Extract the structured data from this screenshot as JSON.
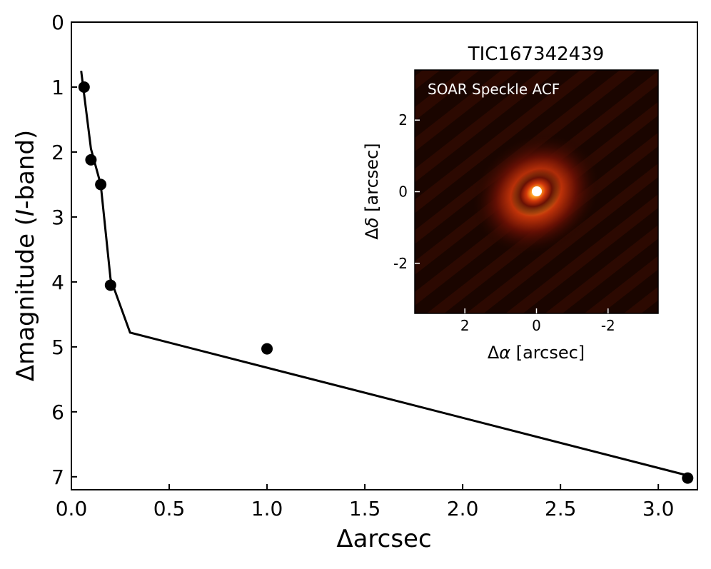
{
  "chart_data": [
    {
      "type": "line",
      "xlabel": "Δarcsec",
      "ylabel_prefix": "Δmagnitude (",
      "ylabel_italic": "I",
      "ylabel_suffix": "-band)",
      "xlim": [
        0.0,
        3.2
      ],
      "ylim": [
        7.2,
        0
      ],
      "y_inverted": true,
      "xticks": [
        0.0,
        0.5,
        1.0,
        1.5,
        2.0,
        2.5,
        3.0
      ],
      "xtick_labels": [
        "0.0",
        "0.5",
        "1.0",
        "1.5",
        "2.0",
        "2.5",
        "3.0"
      ],
      "yticks": [
        0,
        1,
        2,
        3,
        4,
        5,
        6,
        7
      ],
      "ytick_labels": [
        "0",
        "1",
        "2",
        "3",
        "4",
        "5",
        "6",
        "7"
      ],
      "grid": false,
      "series": [
        {
          "kind": "line",
          "color": "#000000",
          "x": [
            0.05,
            0.1,
            0.15,
            0.2,
            0.3,
            3.15
          ],
          "y": [
            0.75,
            1.95,
            2.5,
            3.95,
            4.78,
            6.98
          ]
        },
        {
          "kind": "scatter",
          "color": "#000000",
          "x": [
            0.065,
            0.1,
            0.15,
            0.2,
            1.0,
            3.15
          ],
          "y": [
            1.0,
            2.12,
            2.5,
            4.05,
            5.03,
            7.02
          ]
        }
      ]
    },
    {
      "type": "heatmap",
      "title": "TIC167342439",
      "annotation": "SOAR Speckle ACF",
      "xlabel_prefix": "Δ",
      "xlabel_greek": "α",
      "xlabel_suffix": " [arcsec]",
      "ylabel_prefix": "Δ",
      "ylabel_greek": "δ",
      "ylabel_suffix": " [arcsec]",
      "xlim": [
        3.4,
        -3.4
      ],
      "ylim": [
        -3.4,
        3.4
      ],
      "xticks": [
        2,
        0,
        -2
      ],
      "xtick_labels": [
        "2",
        "0",
        "-2"
      ],
      "yticks": [
        2,
        0,
        -2
      ],
      "ytick_labels": [
        "2",
        "0",
        "-2"
      ],
      "colormap": "afmhot",
      "background_color": "#1a0500"
    }
  ]
}
